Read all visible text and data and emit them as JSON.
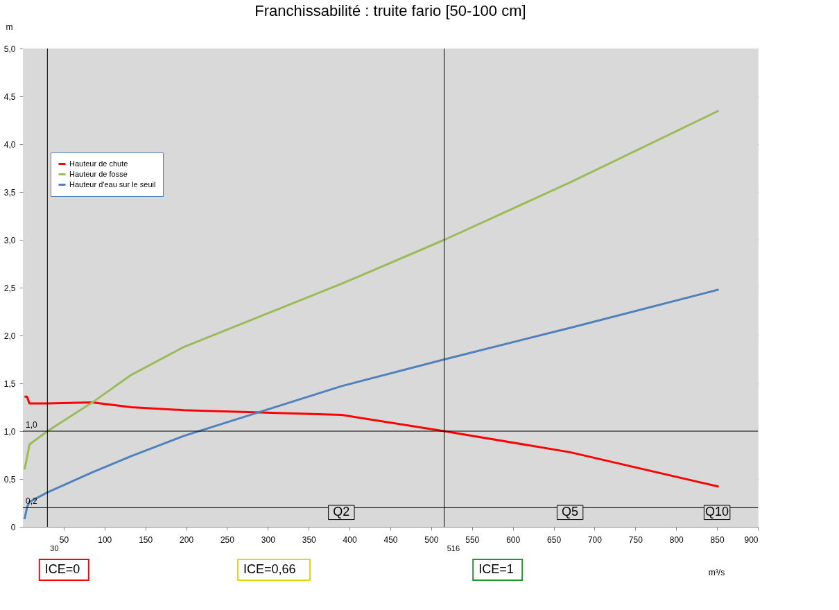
{
  "chart_data": {
    "type": "line",
    "title": "Franchissabilité : truite fario [50-100 cm]",
    "xlabel": "m³/s",
    "ylabel": "m",
    "xlim": [
      0,
      900
    ],
    "xticks": [
      50,
      100,
      150,
      200,
      250,
      300,
      350,
      400,
      450,
      500,
      550,
      600,
      650,
      700,
      750,
      800,
      850,
      900
    ],
    "ylim": [
      0,
      5
    ],
    "yticks": [
      0,
      {
        "value": 0.5,
        "label": "0,5"
      },
      {
        "value": 1,
        "label": "1,0"
      },
      {
        "value": 1.5,
        "label": "1,5"
      },
      {
        "value": 2,
        "label": "2,0"
      },
      {
        "value": 2.5,
        "label": "2,5"
      },
      {
        "value": 3,
        "label": "3,0"
      },
      {
        "value": 3.5,
        "label": "3,5"
      },
      {
        "value": 4,
        "label": "4,0"
      },
      {
        "value": 4.5,
        "label": "4,5"
      },
      {
        "value": 5,
        "label": "5,0"
      }
    ],
    "x": [
      2,
      5,
      8,
      30,
      85,
      133,
      197,
      390,
      516,
      670,
      852
    ],
    "series": [
      {
        "name": "Hauteur de chute",
        "color": "#ff0000",
        "values": [
          1.36,
          1.36,
          1.29,
          1.29,
          1.3,
          1.25,
          1.22,
          1.17,
          1.0,
          0.78,
          0.42
        ]
      },
      {
        "name": "Hauteur de fosse",
        "color": "#9bbb59",
        "values": [
          0.6,
          0.72,
          0.86,
          1.0,
          1.3,
          1.59,
          1.88,
          2.54,
          3.0,
          3.6,
          4.35
        ]
      },
      {
        "name": "Hauteur d'eau sur le seuil",
        "color": "#4f81bd",
        "values": [
          0.08,
          0.2,
          0.26,
          0.36,
          0.57,
          0.74,
          0.95,
          1.47,
          1.75,
          2.08,
          2.48
        ]
      }
    ],
    "ref_lines": [
      {
        "axis": "y",
        "value": 1.0,
        "label": "1,0",
        "color": "#000000"
      },
      {
        "axis": "y",
        "value": 0.2,
        "label": "0,2",
        "color": "#000000"
      },
      {
        "axis": "x",
        "value": 30,
        "label": "30",
        "color": "#000000"
      },
      {
        "axis": "x",
        "value": 516,
        "label": "516",
        "color": "#000000"
      }
    ],
    "annotations": [
      {
        "text": "Q2",
        "x": 390,
        "y": 0.15
      },
      {
        "text": "Q5",
        "x": 670,
        "y": 0.15
      },
      {
        "text": "Q10",
        "x": 850,
        "y": 0.15
      },
      "ICE=0",
      "ICE=0,66",
      "ICE=1"
    ],
    "grid": "y",
    "legend": "top left",
    "line_style": "solid"
  }
}
